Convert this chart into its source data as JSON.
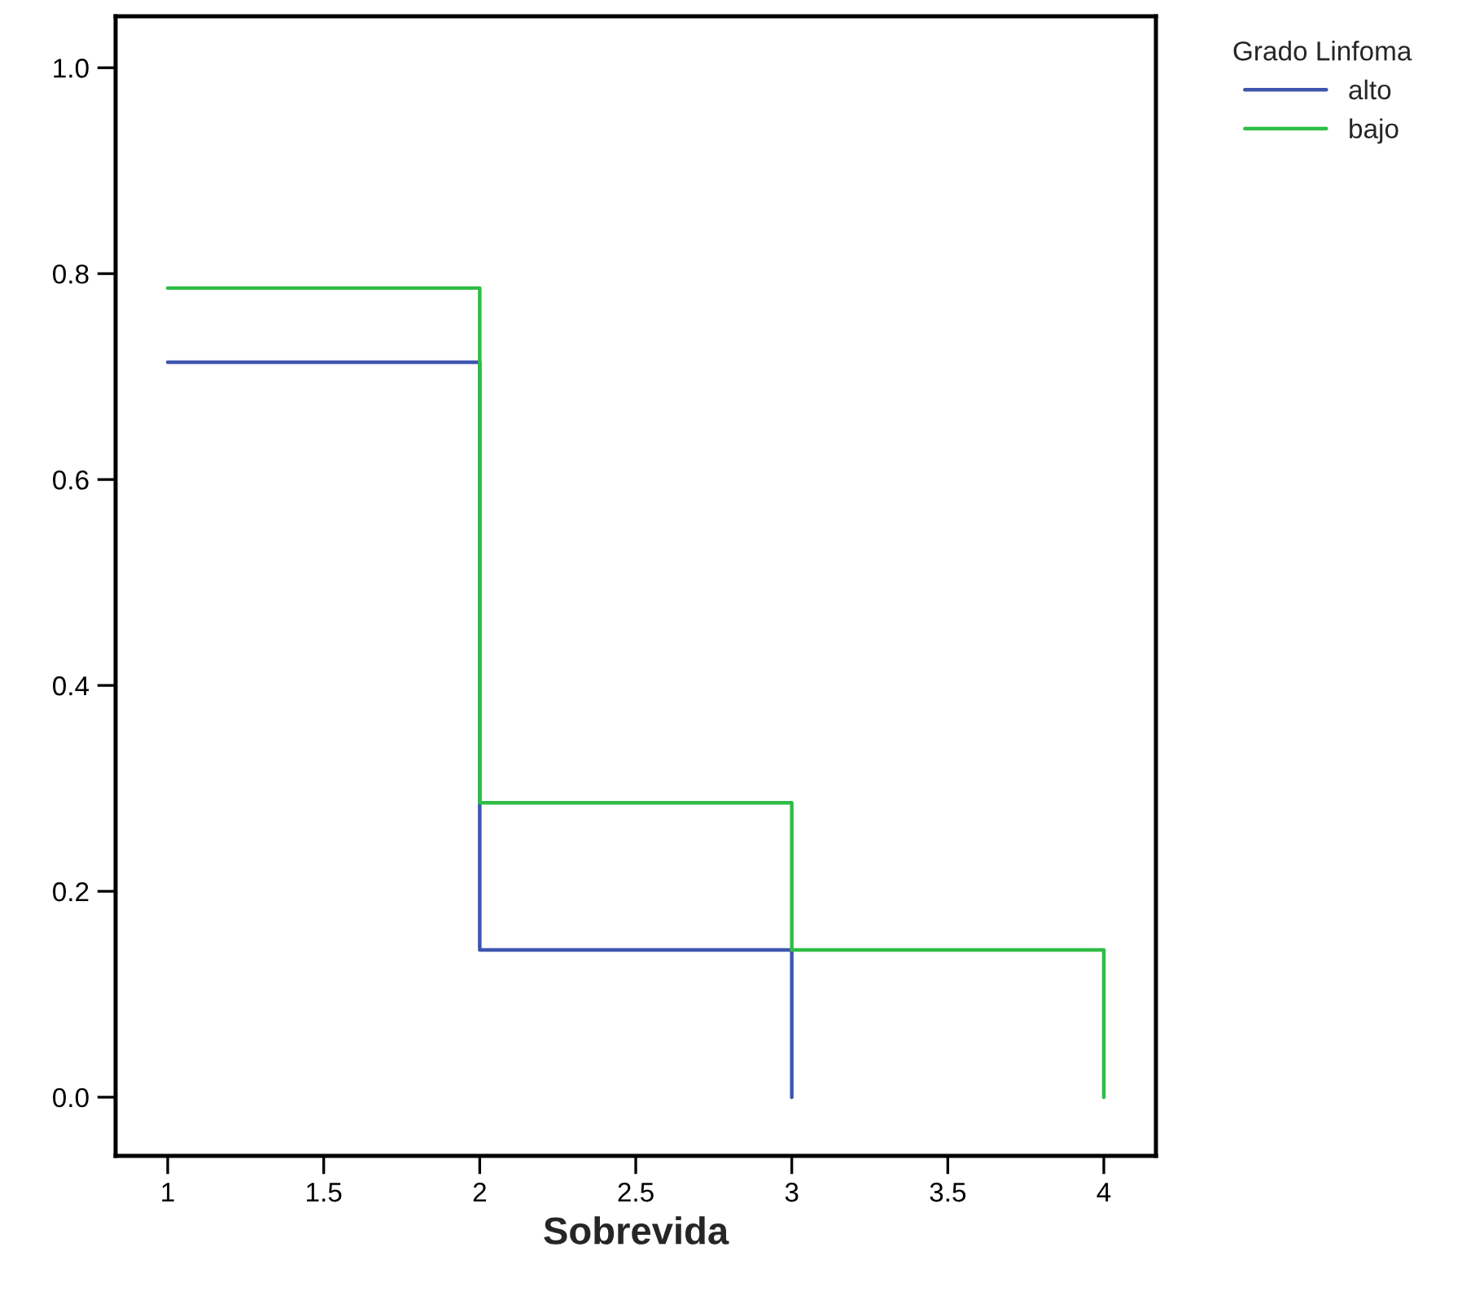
{
  "chart_data": {
    "type": "step",
    "xlabel": "Sobrevida",
    "legend_title": "Grado Linfoma",
    "legend": "top right",
    "grid": false,
    "line_style": "solid",
    "marker": "none",
    "xlim": [
      0.833,
      4.167
    ],
    "ylim": [
      -0.057,
      1.05
    ],
    "xticks": [
      1,
      {
        "value": 1.5,
        "label": "1.5"
      },
      2,
      {
        "value": 2.5,
        "label": "2.5"
      },
      3,
      {
        "value": 3.5,
        "label": "3.5"
      },
      4
    ],
    "yticks": [
      {
        "value": 0,
        "label": "0.0"
      },
      {
        "value": 0.2,
        "label": "0.2"
      },
      {
        "value": 0.4,
        "label": "0.4"
      },
      {
        "value": 0.6,
        "label": "0.6"
      },
      {
        "value": 0.8,
        "label": "0.8"
      },
      {
        "value": 1,
        "label": "1.0"
      }
    ],
    "series": [
      {
        "name": "alto",
        "color": "#3f56b0",
        "x": [
          1,
          2,
          3
        ],
        "values": [
          0.714,
          0.143,
          0.0
        ]
      },
      {
        "name": "bajo",
        "color": "#2ebd45",
        "x": [
          1,
          2,
          3,
          4
        ],
        "values": [
          0.786,
          0.286,
          0.143,
          0.0
        ]
      }
    ]
  }
}
